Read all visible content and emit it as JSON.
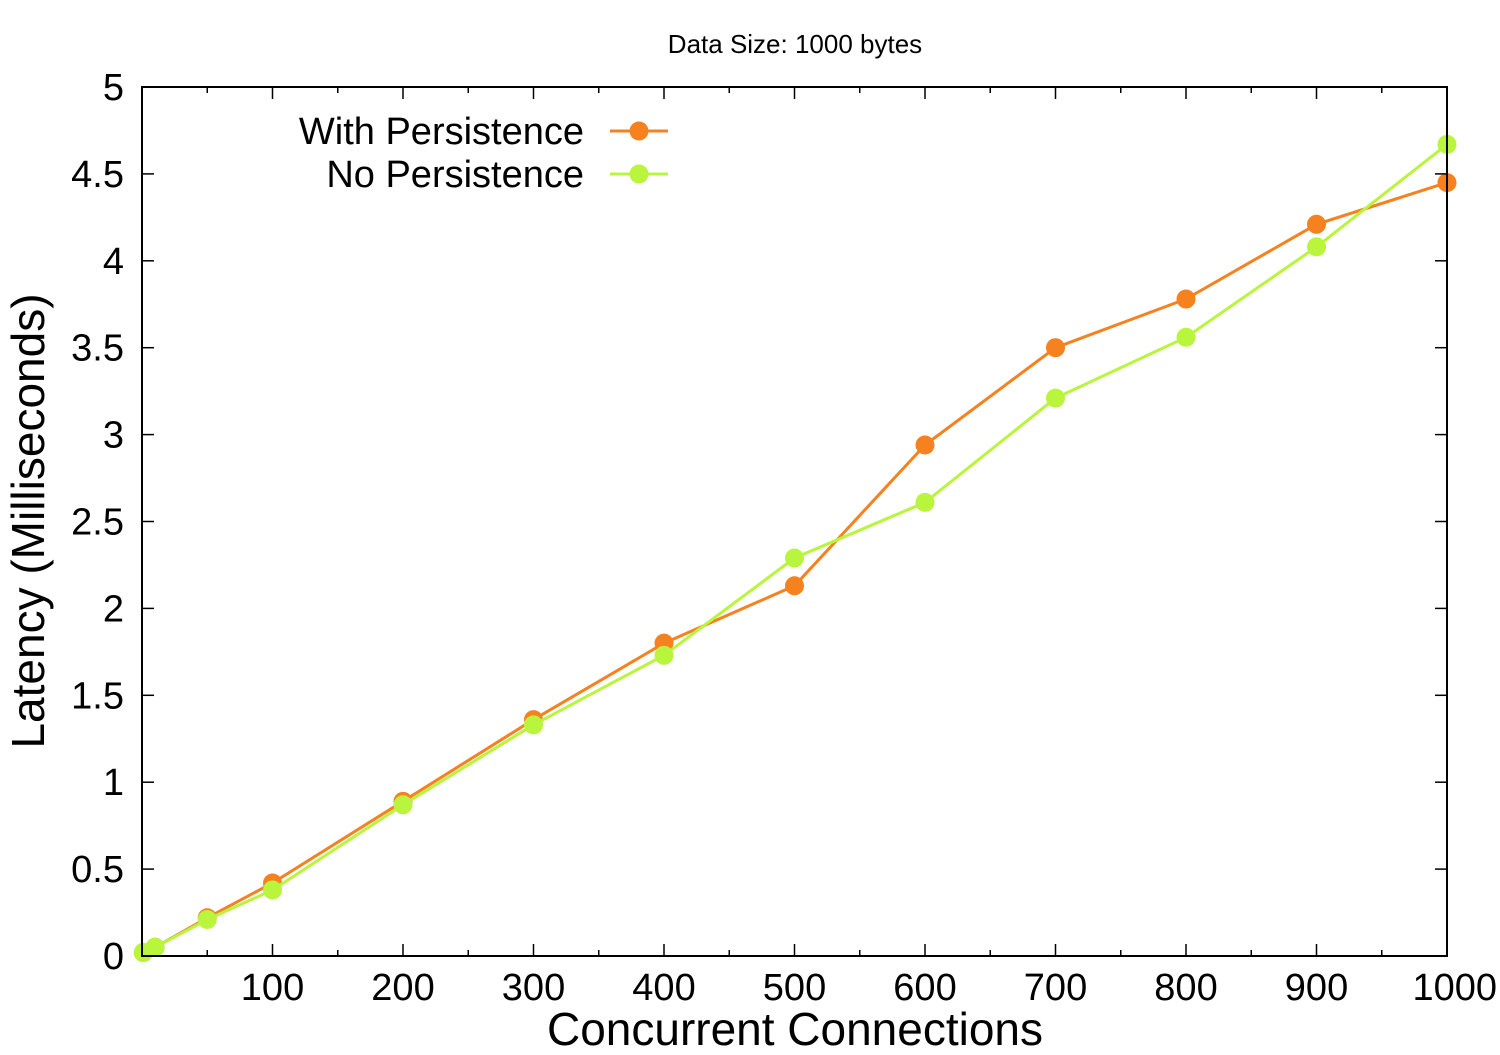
{
  "chart_data": {
    "type": "line",
    "title": "Data Size: 1000 bytes",
    "xlabel": "Concurrent Connections",
    "ylabel": "Latency (Milliseconds)",
    "xlim": [
      0,
      1000
    ],
    "ylim": [
      0,
      5
    ],
    "x_ticks": [
      100,
      200,
      300,
      400,
      500,
      600,
      700,
      800,
      900,
      1000
    ],
    "x_tick_labels": [
      "100",
      "200",
      "300",
      "400",
      "500",
      "600",
      "700",
      "800",
      "900",
      "1000"
    ],
    "y_ticks": [
      0,
      0.5,
      1,
      1.5,
      2,
      2.5,
      3,
      3.5,
      4,
      4.5,
      5
    ],
    "y_tick_labels": [
      "0",
      "0.5",
      "1",
      "1.5",
      "2",
      "2.5",
      "3",
      "3.5",
      "4",
      "4.5",
      "5"
    ],
    "x_minor_step": 50,
    "y_minor_step": 0.5,
    "grid": false,
    "legend_position": "top-left",
    "series": [
      {
        "name": "With Persistence",
        "color": "#f5821f",
        "x": [
          1,
          10,
          50,
          100,
          200,
          300,
          400,
          500,
          600,
          700,
          800,
          900,
          1000
        ],
        "y": [
          0.02,
          0.05,
          0.22,
          0.42,
          0.89,
          1.36,
          1.8,
          2.13,
          2.94,
          3.5,
          3.78,
          4.21,
          4.45
        ]
      },
      {
        "name": "No Persistence",
        "color": "#b8f53c",
        "x": [
          1,
          10,
          50,
          100,
          200,
          300,
          400,
          500,
          600,
          700,
          800,
          900,
          1000
        ],
        "y": [
          0.02,
          0.05,
          0.21,
          0.38,
          0.87,
          1.33,
          1.73,
          2.29,
          2.61,
          3.21,
          3.56,
          4.08,
          4.67
        ]
      }
    ]
  }
}
